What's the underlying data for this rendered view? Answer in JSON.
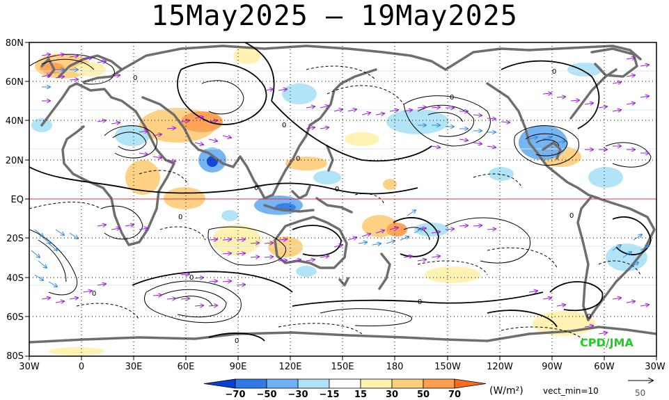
{
  "title": "15May2025 – 19May2025",
  "lat_labels": [
    "80N",
    "60N",
    "40N",
    "20N",
    "EQ",
    "20S",
    "40S",
    "60S",
    "80S"
  ],
  "lon_labels": [
    "30W",
    "0",
    "30E",
    "60E",
    "90E",
    "120E",
    "150E",
    "180",
    "150W",
    "120W",
    "90W",
    "60W",
    "30W"
  ],
  "colorbar": {
    "labels": [
      "−70",
      "−50",
      "−30",
      "−15",
      "15",
      "30",
      "50",
      "70"
    ],
    "colors": [
      "#0a3fd6",
      "#2f7ae6",
      "#6fb2f3",
      "#aee3f7",
      "#ffffff",
      "#fff1ae",
      "#ffcf7e",
      "#ffa04e",
      "#ff6a1c"
    ],
    "units": "(W/m²)",
    "vect_min": "vect_min=10"
  },
  "ref_vector": "50",
  "credit": "CPD/JMA",
  "contour_zero_label": "0"
}
